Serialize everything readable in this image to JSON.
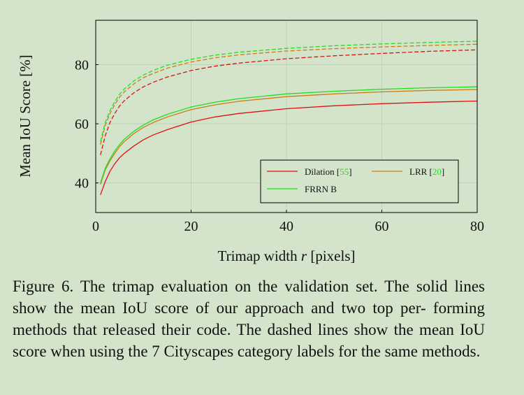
{
  "chart_data": {
    "type": "line",
    "xlabel": "Trimap width r [pixels]",
    "ylabel": "Mean IoU Score [%]",
    "xlim": [
      0,
      80
    ],
    "ylim": [
      30,
      95
    ],
    "xticks": [
      "0",
      "20",
      "40",
      "60",
      "80"
    ],
    "yticks": [
      "40",
      "60",
      "80"
    ],
    "grid": true,
    "legend_position": "lower-right",
    "x": [
      1,
      2,
      3,
      4,
      5,
      6,
      8,
      10,
      12,
      15,
      20,
      25,
      30,
      40,
      50,
      60,
      70,
      80
    ],
    "series": [
      {
        "name": "Dilation",
        "ref": "55",
        "style": "solid",
        "color": "#dd1111",
        "values": [
          36.0,
          40.5,
          44.0,
          46.5,
          48.5,
          50.0,
          52.5,
          54.6,
          56.2,
          58.0,
          60.6,
          62.3,
          63.5,
          65.1,
          66.1,
          66.8,
          67.3,
          67.7
        ]
      },
      {
        "name": "LRR",
        "ref": "20",
        "style": "solid",
        "color": "#c97d16",
        "values": [
          39.5,
          44.5,
          47.5,
          50.0,
          52.3,
          54.0,
          56.7,
          58.8,
          60.4,
          62.3,
          64.8,
          66.4,
          67.6,
          69.2,
          70.1,
          70.8,
          71.3,
          71.6
        ]
      },
      {
        "name": "FRRN B",
        "ref": "",
        "style": "solid",
        "color": "#22dd22",
        "values": [
          40.0,
          45.0,
          48.2,
          50.8,
          53.0,
          54.8,
          57.5,
          59.6,
          61.3,
          63.2,
          65.7,
          67.3,
          68.5,
          70.1,
          71.0,
          71.7,
          72.2,
          72.5
        ]
      },
      {
        "name": "Dilation (7 category labels)",
        "style": "dashed",
        "color": "#dd1111",
        "values": [
          49.5,
          56.0,
          60.5,
          63.5,
          66.0,
          67.8,
          70.5,
          72.5,
          74.0,
          75.8,
          78.0,
          79.5,
          80.5,
          82.0,
          83.0,
          83.8,
          84.5,
          85.0
        ]
      },
      {
        "name": "LRR (7 category labels)",
        "style": "dashed",
        "color": "#c97d16",
        "values": [
          53.0,
          59.5,
          63.5,
          66.5,
          69.0,
          70.8,
          73.5,
          75.6,
          77.0,
          78.8,
          80.9,
          82.3,
          83.3,
          84.6,
          85.4,
          86.0,
          86.5,
          86.9
        ]
      },
      {
        "name": "FRRN B (7 category labels)",
        "style": "dashed",
        "color": "#22dd22",
        "values": [
          54.0,
          60.5,
          64.5,
          67.5,
          70.0,
          71.8,
          74.5,
          76.5,
          78.0,
          79.8,
          81.8,
          83.2,
          84.2,
          85.5,
          86.4,
          87.0,
          87.5,
          87.9
        ]
      }
    ]
  },
  "legend": {
    "dilation_label": "Dilation [",
    "dilation_ref": "55",
    "lrr_label": "LRR [",
    "lrr_ref": "20",
    "close": "]",
    "frrn_label": "FRRN B",
    "ref_color": "#22dd22"
  },
  "axis": {
    "xlabel_prefix": "Trimap width ",
    "xlabel_var": "r",
    "xlabel_suffix": " [pixels]",
    "ylabel": "Mean IoU Score [%]"
  },
  "caption": {
    "line1": "Figure 6. The trimap evaluation on the validation set.  The solid",
    "line2": "lines show the mean IoU score of our approach and two top per-",
    "line3": "forming methods that released their code. The dashed lines show",
    "line4": "the mean IoU score when using the 7 Cityscapes category labels",
    "line5": "for the same methods."
  }
}
